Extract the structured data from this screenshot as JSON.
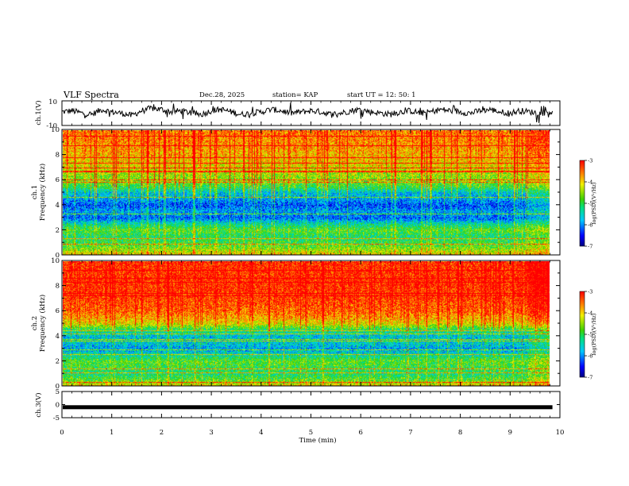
{
  "header": {
    "title": "VLF Spectra",
    "date": "Dec.28, 2025",
    "station": "station= KAP",
    "start": "start  UT =   12: 50: 1"
  },
  "chart_data": [
    {
      "type": "line",
      "name": "ch.1 waveform",
      "ylabel": "ch.1(V)",
      "ylim": [
        -10,
        10
      ],
      "yticks": [
        "10",
        "-10"
      ],
      "xlim": [
        0,
        10
      ],
      "data_end_min": 9.85,
      "x": [
        0,
        0.2,
        0.4,
        0.6,
        0.8,
        1.0,
        1.2,
        1.4,
        1.6,
        1.8,
        2.0,
        2.2,
        2.4,
        2.6,
        2.8,
        3.0,
        3.2,
        3.4,
        3.6,
        3.8,
        4.0,
        4.2,
        4.4,
        4.6,
        4.8,
        5.0,
        5.2,
        5.4,
        5.6,
        5.8,
        6.0,
        6.2,
        6.4,
        6.6,
        6.8,
        7.0,
        7.2,
        7.4,
        7.6,
        7.8,
        8.0,
        8.2,
        8.4,
        8.6,
        8.8,
        9.0,
        9.2,
        9.4,
        9.6,
        9.8
      ],
      "values": [
        1,
        2,
        0,
        -1,
        3,
        1,
        0,
        -2,
        2,
        4,
        3,
        1,
        2,
        0,
        -1,
        2,
        3,
        1,
        -1,
        0,
        1,
        3,
        2,
        0,
        1,
        2,
        1,
        -1,
        0,
        2,
        3,
        1,
        0,
        -1,
        1,
        2,
        0,
        1,
        3,
        2,
        1,
        0,
        2,
        3,
        1,
        0,
        2,
        1,
        0,
        1
      ]
    },
    {
      "type": "heatmap",
      "name": "ch.1 spectrogram",
      "ylabel_top": "ch.1",
      "ylabel": "Frequency (kHz)",
      "ylim": [
        0,
        10
      ],
      "yticks": [
        "0",
        "2",
        "4",
        "6",
        "8",
        "10"
      ],
      "xlim": [
        0,
        10
      ],
      "data_end_min": 9.85,
      "colorbar": {
        "label": "log(PSD)(V²/Hz)",
        "range": [
          -7,
          -3
        ],
        "ticks": [
          "-3",
          "-4",
          "-5",
          "-6",
          "-7"
        ]
      },
      "freq_profile_khz": [
        0,
        0.5,
        1,
        1.5,
        2,
        2.5,
        3,
        3.5,
        4,
        4.5,
        5,
        5.5,
        6,
        6.5,
        7,
        8,
        9,
        10
      ],
      "freq_profile_level": [
        -4.0,
        -4.6,
        -5.0,
        -5.2,
        -4.8,
        -5.4,
        -6.2,
        -5.9,
        -6.3,
        -5.9,
        -5.7,
        -5.0,
        -4.6,
        -4.5,
        -4.2,
        -3.9,
        -3.7,
        -3.6
      ]
    },
    {
      "type": "heatmap",
      "name": "ch.2 spectrogram",
      "ylabel_top": "ch.2",
      "ylabel": "Frequency (kHz)",
      "ylim": [
        0,
        10
      ],
      "yticks": [
        "0",
        "2",
        "4",
        "6",
        "8",
        "10"
      ],
      "xlim": [
        0,
        10
      ],
      "data_end_min": 9.85,
      "colorbar": {
        "label": "log(PSD)(V²/Hz)",
        "range": [
          -7,
          -3
        ],
        "ticks": [
          "-3",
          "-4",
          "-5",
          "-6",
          "-7"
        ]
      },
      "freq_profile_khz": [
        0,
        0.5,
        1,
        1.5,
        2,
        2.5,
        3,
        3.5,
        4,
        4.5,
        5,
        5.5,
        6,
        7,
        8,
        9,
        10
      ],
      "freq_profile_level": [
        -4.0,
        -4.8,
        -5.2,
        -5.0,
        -4.8,
        -5.4,
        -5.9,
        -5.6,
        -5.7,
        -5.2,
        -4.2,
        -3.8,
        -3.5,
        -3.3,
        -3.2,
        -3.2,
        -3.2
      ]
    },
    {
      "type": "line",
      "name": "ch.3 waveform",
      "ylabel": "ch.3(V)",
      "ylim": [
        -5,
        5
      ],
      "yticks": [
        "5",
        "0",
        "-5"
      ],
      "xlim": [
        0,
        10
      ],
      "data_end_min": 9.85,
      "x": [
        0,
        9.85
      ],
      "values": [
        -1,
        -1
      ]
    }
  ],
  "x_axis": {
    "label": "Time (min)",
    "ticks": [
      "0",
      "1",
      "2",
      "3",
      "4",
      "5",
      "6",
      "7",
      "8",
      "9",
      "10"
    ]
  }
}
